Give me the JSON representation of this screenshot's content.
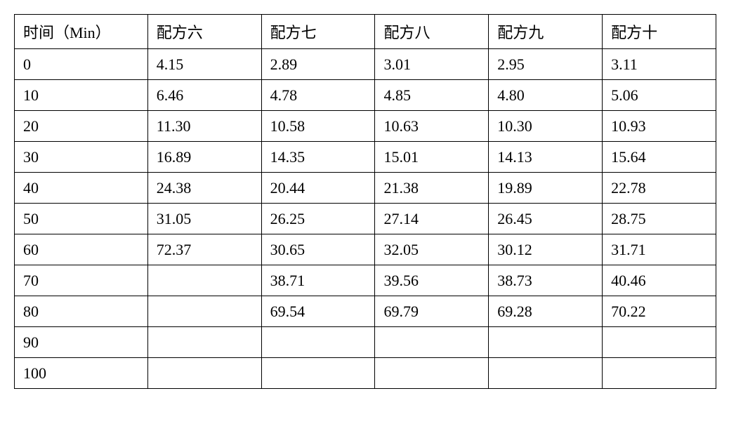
{
  "table": {
    "type": "table",
    "columns": [
      "时间（Min）",
      "配方六",
      "配方七",
      "配方八",
      "配方九",
      "配方十"
    ],
    "column_widths": [
      "19%",
      "16.2%",
      "16.2%",
      "16.2%",
      "16.2%",
      "16.2%"
    ],
    "rows": [
      [
        "0",
        "4.15",
        "2.89",
        "3.01",
        "2.95",
        "3.11"
      ],
      [
        "10",
        "6.46",
        "4.78",
        "4.85",
        "4.80",
        "5.06"
      ],
      [
        "20",
        "11.30",
        "10.58",
        "10.63",
        "10.30",
        "10.93"
      ],
      [
        "30",
        "16.89",
        "14.35",
        "15.01",
        "14.13",
        "15.64"
      ],
      [
        "40",
        "24.38",
        "20.44",
        "21.38",
        "19.89",
        "22.78"
      ],
      [
        "50",
        "31.05",
        "26.25",
        "27.14",
        "26.45",
        "28.75"
      ],
      [
        "60",
        "72.37",
        "30.65",
        "32.05",
        "30.12",
        "31.71"
      ],
      [
        "70",
        "",
        "38.71",
        "39.56",
        "38.73",
        "40.46"
      ],
      [
        "80",
        "",
        "69.54",
        "69.79",
        "69.28",
        "70.22"
      ],
      [
        "90",
        "",
        "",
        "",
        "",
        ""
      ],
      [
        "100",
        "",
        "",
        "",
        "",
        ""
      ]
    ],
    "border_color": "#000000",
    "background_color": "#ffffff",
    "text_color": "#000000",
    "font_size": 22,
    "cell_padding": "8px 12px",
    "text_align": "left"
  }
}
